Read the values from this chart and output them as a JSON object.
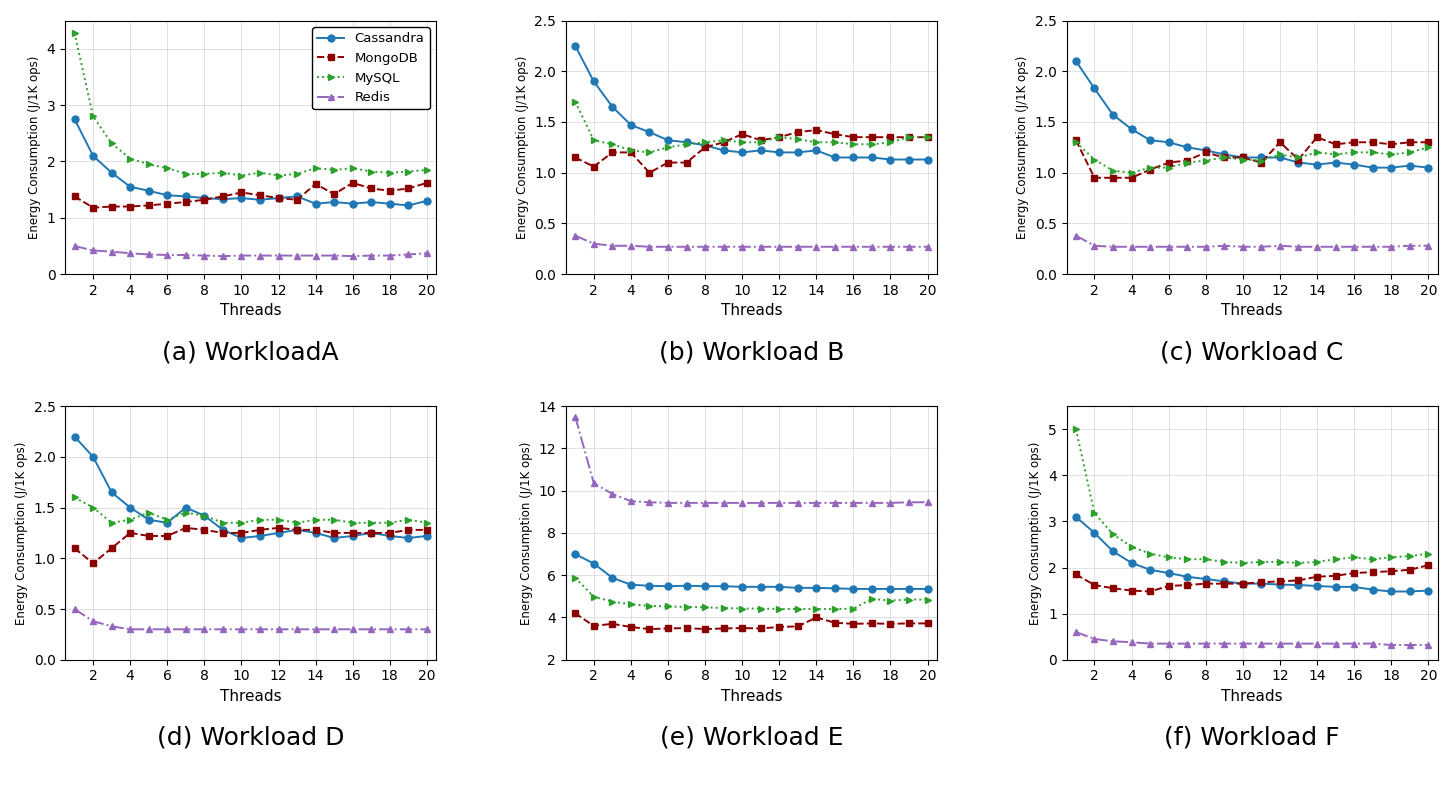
{
  "threads": [
    1,
    2,
    3,
    4,
    5,
    6,
    7,
    8,
    9,
    10,
    11,
    12,
    13,
    14,
    15,
    16,
    17,
    18,
    19,
    20
  ],
  "workloads": {
    "A": {
      "cassandra": [
        2.75,
        2.1,
        1.8,
        1.55,
        1.48,
        1.4,
        1.38,
        1.35,
        1.33,
        1.35,
        1.32,
        1.35,
        1.38,
        1.25,
        1.28,
        1.25,
        1.28,
        1.25,
        1.22,
        1.3
      ],
      "mongodb": [
        1.38,
        1.18,
        1.2,
        1.2,
        1.22,
        1.25,
        1.28,
        1.32,
        1.38,
        1.45,
        1.4,
        1.35,
        1.32,
        1.6,
        1.42,
        1.62,
        1.52,
        1.48,
        1.52,
        1.62
      ],
      "mysql": [
        4.28,
        2.8,
        2.32,
        2.05,
        1.95,
        1.88,
        1.78,
        1.78,
        1.8,
        1.75,
        1.8,
        1.75,
        1.78,
        1.88,
        1.85,
        1.88,
        1.82,
        1.8,
        1.82,
        1.85
      ],
      "redis": [
        0.5,
        0.42,
        0.4,
        0.37,
        0.35,
        0.34,
        0.34,
        0.33,
        0.32,
        0.33,
        0.33,
        0.33,
        0.33,
        0.33,
        0.33,
        0.32,
        0.33,
        0.33,
        0.35,
        0.37
      ],
      "ylim": [
        0,
        4.5
      ],
      "yticks": [
        0,
        1,
        2,
        3,
        4
      ],
      "title": "(a) WorkloadA"
    },
    "B": {
      "cassandra": [
        2.25,
        1.9,
        1.65,
        1.47,
        1.4,
        1.32,
        1.3,
        1.27,
        1.22,
        1.2,
        1.22,
        1.2,
        1.2,
        1.22,
        1.15,
        1.15,
        1.15,
        1.13,
        1.13,
        1.13
      ],
      "mongodb": [
        1.15,
        1.06,
        1.2,
        1.2,
        1.0,
        1.1,
        1.1,
        1.25,
        1.3,
        1.38,
        1.32,
        1.35,
        1.4,
        1.42,
        1.38,
        1.35,
        1.35,
        1.35,
        1.35,
        1.35
      ],
      "mysql": [
        1.7,
        1.32,
        1.28,
        1.22,
        1.2,
        1.25,
        1.28,
        1.3,
        1.32,
        1.3,
        1.3,
        1.35,
        1.33,
        1.3,
        1.3,
        1.28,
        1.28,
        1.3,
        1.35,
        1.35
      ],
      "redis": [
        0.38,
        0.3,
        0.28,
        0.28,
        0.27,
        0.27,
        0.27,
        0.27,
        0.27,
        0.27,
        0.27,
        0.27,
        0.27,
        0.27,
        0.27,
        0.27,
        0.27,
        0.27,
        0.27,
        0.27
      ],
      "ylim": [
        0.0,
        2.5
      ],
      "yticks": [
        0.0,
        0.5,
        1.0,
        1.5,
        2.0,
        2.5
      ],
      "title": "(b) Workload B"
    },
    "C": {
      "cassandra": [
        2.1,
        1.83,
        1.57,
        1.43,
        1.32,
        1.3,
        1.25,
        1.22,
        1.18,
        1.15,
        1.15,
        1.15,
        1.1,
        1.08,
        1.1,
        1.08,
        1.05,
        1.05,
        1.07,
        1.05
      ],
      "mongodb": [
        1.32,
        0.95,
        0.95,
        0.95,
        1.03,
        1.1,
        1.12,
        1.2,
        1.15,
        1.15,
        1.1,
        1.3,
        1.13,
        1.35,
        1.28,
        1.3,
        1.3,
        1.28,
        1.3,
        1.3
      ],
      "mysql": [
        1.3,
        1.13,
        1.02,
        1.0,
        1.05,
        1.05,
        1.1,
        1.12,
        1.15,
        1.13,
        1.12,
        1.18,
        1.15,
        1.2,
        1.18,
        1.2,
        1.2,
        1.18,
        1.2,
        1.25
      ],
      "redis": [
        0.38,
        0.28,
        0.27,
        0.27,
        0.27,
        0.27,
        0.27,
        0.27,
        0.28,
        0.27,
        0.27,
        0.28,
        0.27,
        0.27,
        0.27,
        0.27,
        0.27,
        0.27,
        0.28,
        0.28
      ],
      "ylim": [
        0.0,
        2.5
      ],
      "yticks": [
        0.0,
        0.5,
        1.0,
        1.5,
        2.0,
        2.5
      ],
      "title": "(c) Workload C"
    },
    "D": {
      "cassandra": [
        2.2,
        2.0,
        1.65,
        1.5,
        1.38,
        1.35,
        1.5,
        1.42,
        1.28,
        1.2,
        1.22,
        1.25,
        1.28,
        1.25,
        1.2,
        1.22,
        1.25,
        1.22,
        1.2,
        1.22
      ],
      "mongodb": [
        1.1,
        0.95,
        1.1,
        1.25,
        1.22,
        1.22,
        1.3,
        1.28,
        1.25,
        1.25,
        1.28,
        1.3,
        1.28,
        1.28,
        1.25,
        1.25,
        1.25,
        1.25,
        1.28,
        1.28
      ],
      "mysql": [
        1.6,
        1.5,
        1.35,
        1.38,
        1.45,
        1.38,
        1.45,
        1.42,
        1.35,
        1.35,
        1.38,
        1.38,
        1.35,
        1.38,
        1.38,
        1.35,
        1.35,
        1.35,
        1.38,
        1.35
      ],
      "redis": [
        0.5,
        0.38,
        0.33,
        0.3,
        0.3,
        0.3,
        0.3,
        0.3,
        0.3,
        0.3,
        0.3,
        0.3,
        0.3,
        0.3,
        0.3,
        0.3,
        0.3,
        0.3,
        0.3,
        0.3
      ],
      "ylim": [
        0,
        2.5
      ],
      "yticks": [
        0.0,
        0.5,
        1.0,
        1.5,
        2.0,
        2.5
      ],
      "title": "(d) Workload D"
    },
    "E": {
      "cassandra": [
        7.0,
        6.55,
        5.88,
        5.55,
        5.5,
        5.48,
        5.5,
        5.48,
        5.48,
        5.45,
        5.45,
        5.45,
        5.4,
        5.4,
        5.38,
        5.35,
        5.35,
        5.35,
        5.35,
        5.35
      ],
      "mongodb": [
        4.2,
        3.6,
        3.7,
        3.55,
        3.45,
        3.48,
        3.5,
        3.45,
        3.48,
        3.5,
        3.48,
        3.55,
        3.58,
        4.0,
        3.75,
        3.7,
        3.72,
        3.7,
        3.72,
        3.72
      ],
      "mysql": [
        5.88,
        4.98,
        4.75,
        4.62,
        4.55,
        4.52,
        4.5,
        4.48,
        4.45,
        4.42,
        4.42,
        4.4,
        4.4,
        4.4,
        4.4,
        4.42,
        4.88,
        4.8,
        4.85,
        4.85
      ],
      "redis": [
        13.5,
        10.35,
        9.85,
        9.5,
        9.45,
        9.42,
        9.42,
        9.42,
        9.42,
        9.42,
        9.42,
        9.42,
        9.42,
        9.42,
        9.42,
        9.42,
        9.42,
        9.42,
        9.45,
        9.45
      ],
      "ylim": [
        2,
        14
      ],
      "yticks": [
        2,
        4,
        6,
        8,
        10,
        12,
        14
      ],
      "title": "(e) Workload E"
    },
    "F": {
      "cassandra": [
        3.1,
        2.75,
        2.35,
        2.1,
        1.95,
        1.88,
        1.8,
        1.75,
        1.7,
        1.65,
        1.65,
        1.63,
        1.62,
        1.6,
        1.58,
        1.58,
        1.52,
        1.48,
        1.48,
        1.5
      ],
      "mongodb": [
        1.85,
        1.62,
        1.55,
        1.5,
        1.48,
        1.6,
        1.62,
        1.65,
        1.65,
        1.65,
        1.68,
        1.7,
        1.72,
        1.8,
        1.82,
        1.88,
        1.9,
        1.92,
        1.95,
        2.05
      ],
      "mysql": [
        5.0,
        3.18,
        2.72,
        2.45,
        2.3,
        2.22,
        2.18,
        2.18,
        2.12,
        2.1,
        2.12,
        2.12,
        2.1,
        2.12,
        2.18,
        2.22,
        2.18,
        2.22,
        2.25,
        2.3
      ],
      "redis": [
        0.6,
        0.45,
        0.4,
        0.38,
        0.35,
        0.35,
        0.35,
        0.35,
        0.35,
        0.35,
        0.35,
        0.35,
        0.35,
        0.35,
        0.35,
        0.35,
        0.35,
        0.32,
        0.32,
        0.32
      ],
      "ylim": [
        0,
        5.5
      ],
      "yticks": [
        0,
        1,
        2,
        3,
        4,
        5
      ],
      "title": "(f) Workload F"
    }
  },
  "colors": {
    "cassandra": "#1f77b4",
    "mongodb": "#8B0000",
    "mysql": "#2ca02c",
    "redis": "#9467bd"
  },
  "linestyles": {
    "cassandra": "-",
    "mongodb": "--",
    "mysql": ":",
    "redis": "-."
  },
  "markers": {
    "cassandra": "o",
    "mongodb": "s",
    "mysql": ">",
    "redis": "^"
  },
  "ylabel": "Energy Consumption (J/1K ops)",
  "xlabel": "Threads",
  "subtitle_fontsize": 18,
  "tick_fontsize": 10,
  "label_fontsize": 11
}
